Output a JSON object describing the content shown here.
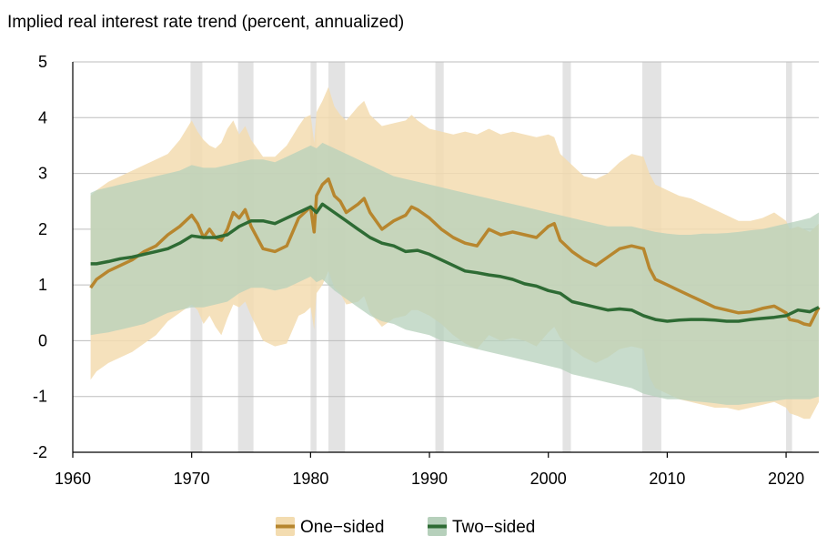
{
  "chart_data": {
    "type": "line",
    "title": "Implied real interest rate trend (percent, annualized)",
    "xlabel": "",
    "ylabel": "",
    "xlim": [
      1960,
      2022.75
    ],
    "ylim": [
      -2,
      5
    ],
    "x_ticks": [
      1960,
      1970,
      1980,
      1990,
      2000,
      2010,
      2020
    ],
    "x_tick_labels": [
      "1960",
      "1970",
      "1980",
      "1990",
      "2000",
      "2010",
      "2020"
    ],
    "y_ticks": [
      -2,
      -1,
      0,
      1,
      2,
      3,
      4,
      5
    ],
    "y_tick_labels": [
      "-2",
      "-1",
      "0",
      "1",
      "2",
      "3",
      "4",
      "5"
    ],
    "grid": "horizontal",
    "legend_position": "bottom-center",
    "recessions": [
      [
        1969.9,
        1970.9
      ],
      [
        1973.9,
        1975.2
      ],
      [
        1980.0,
        1980.5
      ],
      [
        1981.5,
        1982.9
      ],
      [
        1990.5,
        1991.2
      ],
      [
        2001.2,
        2001.9
      ],
      [
        2007.9,
        2009.5
      ],
      [
        2020.0,
        2020.5
      ]
    ],
    "series": [
      {
        "name": "One−sided",
        "color": "#b7862e",
        "band_color": "#f3dcb0",
        "x": [
          1961.5,
          1962,
          1963,
          1964,
          1965,
          1966,
          1967,
          1968,
          1969,
          1970,
          1970.5,
          1971,
          1971.5,
          1972,
          1972.5,
          1973,
          1973.5,
          1974,
          1974.5,
          1975,
          1976,
          1977,
          1978,
          1979,
          1979.5,
          1980,
          1980.3,
          1980.5,
          1981,
          1981.5,
          1982,
          1982.5,
          1983,
          1984,
          1984.5,
          1985,
          1986,
          1987,
          1988,
          1988.5,
          1989,
          1990,
          1991,
          1992,
          1993,
          1994,
          1995,
          1996,
          1997,
          1998,
          1999,
          2000,
          2000.5,
          2001,
          2002,
          2003,
          2004,
          2005,
          2006,
          2007,
          2008,
          2008.5,
          2009,
          2010,
          2011,
          2012,
          2013,
          2014,
          2015,
          2016,
          2017,
          2018,
          2019,
          2020,
          2020.3,
          2021,
          2021.5,
          2022,
          2022.75
        ],
        "y": [
          0.95,
          1.1,
          1.25,
          1.35,
          1.45,
          1.6,
          1.7,
          1.9,
          2.05,
          2.25,
          2.1,
          1.85,
          2.0,
          1.85,
          1.8,
          2.0,
          2.3,
          2.2,
          2.35,
          2.05,
          1.65,
          1.6,
          1.7,
          2.2,
          2.3,
          2.4,
          1.95,
          2.6,
          2.8,
          2.9,
          2.6,
          2.5,
          2.3,
          2.45,
          2.55,
          2.3,
          2.0,
          2.15,
          2.25,
          2.4,
          2.35,
          2.2,
          2.0,
          1.85,
          1.75,
          1.7,
          2.0,
          1.9,
          1.95,
          1.9,
          1.85,
          2.05,
          2.1,
          1.8,
          1.6,
          1.45,
          1.35,
          1.5,
          1.65,
          1.7,
          1.65,
          1.3,
          1.1,
          1.0,
          0.9,
          0.8,
          0.7,
          0.6,
          0.55,
          0.5,
          0.52,
          0.58,
          0.62,
          0.5,
          0.38,
          0.35,
          0.3,
          0.28,
          0.6
        ],
        "upper": [
          2.6,
          2.7,
          2.85,
          2.95,
          3.05,
          3.15,
          3.25,
          3.35,
          3.6,
          3.95,
          3.75,
          3.6,
          3.5,
          3.45,
          3.55,
          3.8,
          3.95,
          3.7,
          3.85,
          3.6,
          3.3,
          3.3,
          3.5,
          3.85,
          4.0,
          4.05,
          3.55,
          4.1,
          4.3,
          4.55,
          4.2,
          4.05,
          3.95,
          4.2,
          4.3,
          4.05,
          3.85,
          3.9,
          3.95,
          4.05,
          3.95,
          3.8,
          3.75,
          3.7,
          3.75,
          3.7,
          3.8,
          3.7,
          3.75,
          3.7,
          3.65,
          3.7,
          3.65,
          3.35,
          3.15,
          2.95,
          2.9,
          3.0,
          3.2,
          3.35,
          3.3,
          3.0,
          2.8,
          2.7,
          2.6,
          2.55,
          2.45,
          2.35,
          2.25,
          2.15,
          2.15,
          2.2,
          2.3,
          2.15,
          2.0,
          2.05,
          2.0,
          1.95,
          2.1
        ],
        "lower": [
          -0.7,
          -0.55,
          -0.4,
          -0.3,
          -0.2,
          -0.05,
          0.1,
          0.35,
          0.5,
          0.65,
          0.55,
          0.3,
          0.45,
          0.25,
          0.1,
          0.4,
          0.65,
          0.6,
          0.7,
          0.45,
          0.0,
          -0.1,
          -0.05,
          0.45,
          0.5,
          0.6,
          0.2,
          0.85,
          1.0,
          1.25,
          0.95,
          0.85,
          0.65,
          0.7,
          0.8,
          0.5,
          0.25,
          0.4,
          0.45,
          0.55,
          0.55,
          0.45,
          0.3,
          0.1,
          -0.05,
          -0.15,
          0.1,
          0.0,
          0.05,
          0.0,
          -0.1,
          0.15,
          0.25,
          0.05,
          -0.15,
          -0.3,
          -0.4,
          -0.3,
          -0.15,
          -0.1,
          -0.15,
          -0.65,
          -0.85,
          -0.95,
          -1.05,
          -1.1,
          -1.15,
          -1.2,
          -1.2,
          -1.25,
          -1.2,
          -1.15,
          -1.1,
          -1.2,
          -1.3,
          -1.35,
          -1.4,
          -1.4,
          -1.1
        ]
      },
      {
        "name": "Two−sided",
        "color": "#2e6b34",
        "band_color": "#b6d0bb",
        "x": [
          1961.5,
          1962,
          1963,
          1964,
          1965,
          1966,
          1967,
          1968,
          1969,
          1970,
          1971,
          1972,
          1973,
          1974,
          1975,
          1976,
          1977,
          1978,
          1979,
          1980,
          1980.5,
          1981,
          1982,
          1983,
          1984,
          1985,
          1986,
          1987,
          1988,
          1989,
          1990,
          1991,
          1992,
          1993,
          1994,
          1995,
          1996,
          1997,
          1998,
          1999,
          2000,
          2001,
          2002,
          2003,
          2004,
          2005,
          2006,
          2007,
          2008,
          2009,
          2010,
          2011,
          2012,
          2013,
          2014,
          2015,
          2016,
          2017,
          2018,
          2019,
          2020,
          2021,
          2022,
          2022.75
        ],
        "y": [
          1.38,
          1.38,
          1.42,
          1.47,
          1.5,
          1.55,
          1.6,
          1.65,
          1.75,
          1.88,
          1.85,
          1.85,
          1.9,
          2.05,
          2.15,
          2.15,
          2.1,
          2.2,
          2.3,
          2.4,
          2.3,
          2.45,
          2.3,
          2.15,
          2.0,
          1.85,
          1.75,
          1.7,
          1.6,
          1.62,
          1.55,
          1.45,
          1.35,
          1.25,
          1.22,
          1.18,
          1.15,
          1.1,
          1.02,
          0.98,
          0.9,
          0.85,
          0.7,
          0.65,
          0.6,
          0.55,
          0.57,
          0.55,
          0.45,
          0.38,
          0.35,
          0.37,
          0.38,
          0.38,
          0.37,
          0.35,
          0.35,
          0.38,
          0.4,
          0.42,
          0.45,
          0.55,
          0.52,
          0.6
        ],
        "upper": [
          2.65,
          2.7,
          2.75,
          2.8,
          2.85,
          2.9,
          2.95,
          3.0,
          3.05,
          3.15,
          3.1,
          3.1,
          3.15,
          3.2,
          3.25,
          3.25,
          3.2,
          3.3,
          3.4,
          3.5,
          3.45,
          3.55,
          3.45,
          3.35,
          3.25,
          3.15,
          3.05,
          2.95,
          2.9,
          2.85,
          2.8,
          2.75,
          2.7,
          2.65,
          2.6,
          2.55,
          2.5,
          2.45,
          2.4,
          2.35,
          2.3,
          2.25,
          2.2,
          2.15,
          2.1,
          2.05,
          2.05,
          2.05,
          2.0,
          1.95,
          1.92,
          1.9,
          1.9,
          1.92,
          1.92,
          1.93,
          1.95,
          1.98,
          2.0,
          2.05,
          2.1,
          2.15,
          2.2,
          2.3
        ],
        "lower": [
          0.1,
          0.12,
          0.15,
          0.2,
          0.25,
          0.3,
          0.4,
          0.5,
          0.55,
          0.6,
          0.6,
          0.65,
          0.7,
          0.85,
          0.95,
          0.95,
          0.9,
          0.95,
          1.05,
          1.15,
          1.05,
          1.1,
          0.9,
          0.75,
          0.6,
          0.45,
          0.35,
          0.3,
          0.2,
          0.15,
          0.1,
          0.0,
          -0.05,
          -0.1,
          -0.15,
          -0.2,
          -0.25,
          -0.3,
          -0.35,
          -0.4,
          -0.45,
          -0.5,
          -0.6,
          -0.65,
          -0.7,
          -0.75,
          -0.8,
          -0.85,
          -0.95,
          -1.0,
          -1.05,
          -1.05,
          -1.08,
          -1.1,
          -1.12,
          -1.15,
          -1.15,
          -1.12,
          -1.1,
          -1.08,
          -1.05,
          -1.05,
          -1.05,
          -1.0
        ]
      }
    ],
    "legend": [
      {
        "label": "One−sided",
        "color": "#b7862e"
      },
      {
        "label": "Two−sided",
        "color": "#b6d0bb"
      }
    ]
  }
}
